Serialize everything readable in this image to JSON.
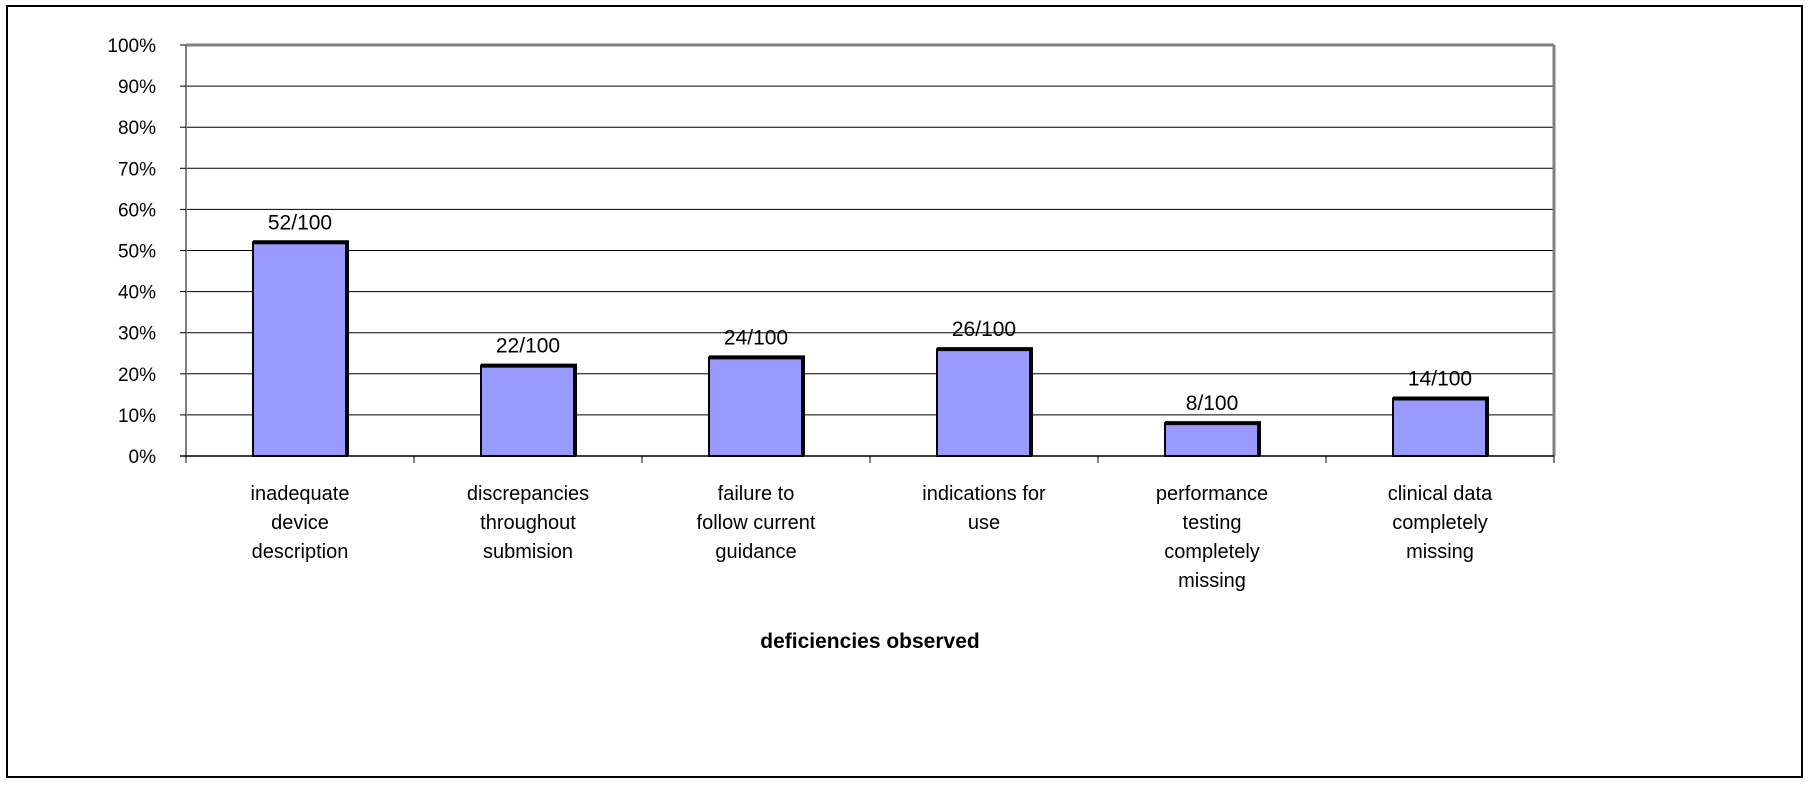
{
  "chart_data": {
    "type": "bar",
    "title": "",
    "xlabel": "deficiencies observed",
    "ylabel": "",
    "ylim": [
      0,
      100
    ],
    "y_ticks": [
      0,
      10,
      20,
      30,
      40,
      50,
      60,
      70,
      80,
      90,
      100
    ],
    "y_tick_labels": [
      "0%",
      "10%",
      "20%",
      "30%",
      "40%",
      "50%",
      "60%",
      "70%",
      "80%",
      "90%",
      "100%"
    ],
    "grid": "horizontal",
    "legend": "none",
    "categories": [
      "inadequate device description",
      "discrepancies throughout submision",
      "failure to follow current guidance",
      "indications for use",
      "performance testing completely missing",
      "clinical data completely missing"
    ],
    "category_lines": [
      [
        "inadequate",
        "device",
        "description"
      ],
      [
        "discrepancies",
        "throughout",
        "submision"
      ],
      [
        "failure to",
        "follow current",
        "guidance"
      ],
      [
        "indications for",
        "use"
      ],
      [
        "performance",
        "testing",
        "completely",
        "missing"
      ],
      [
        "clinical data",
        "completely",
        "missing"
      ]
    ],
    "values": [
      52,
      22,
      24,
      26,
      8,
      14
    ],
    "data_labels": [
      "52/100",
      "22/100",
      "24/100",
      "26/100",
      "8/100",
      "14/100"
    ],
    "colors": {
      "bar_fill": "#9999ff",
      "bar_stroke": "#000000",
      "plot_border": "#808080",
      "grid": "#000000",
      "background": "#ffffff"
    }
  }
}
